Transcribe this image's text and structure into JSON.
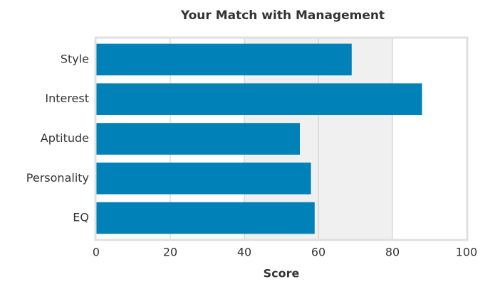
{
  "chart_data": {
    "type": "bar",
    "orientation": "horizontal",
    "title": "Your Match with Management",
    "x_label": "Score",
    "categories": [
      "Style",
      "Interest",
      "Aptitude",
      "Personality",
      "EQ"
    ],
    "values": [
      69,
      88,
      55,
      58,
      59
    ],
    "color": "#0081b8",
    "xlim": [
      0,
      100
    ],
    "xticks": [
      0,
      20,
      40,
      60,
      80,
      100
    ],
    "grid": true
  }
}
